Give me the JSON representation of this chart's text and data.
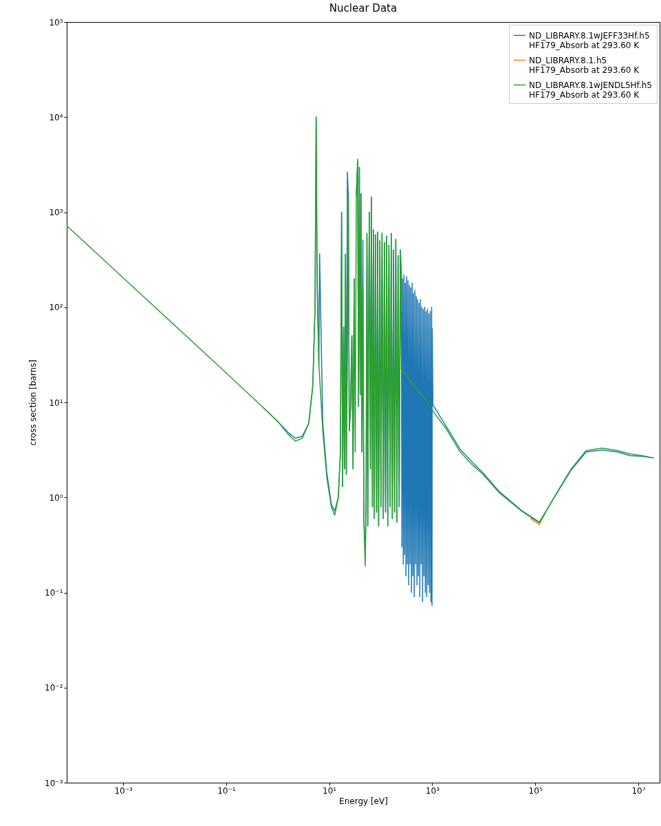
{
  "chart_data": {
    "type": "line",
    "title": "Nuclear Data",
    "xlabel": "Energy [eV]",
    "ylabel": "cross section [barns]",
    "log": "xy",
    "grid": false,
    "legend": "top right",
    "xlim": [
      8e-05,
      26000000.0
    ],
    "ylim": [
      0.001,
      100000
    ],
    "xticks": [
      {
        "value": 0.001,
        "label": "10⁻³"
      },
      {
        "value": 0.1,
        "label": "10⁻¹"
      },
      {
        "value": 10,
        "label": "10¹"
      },
      {
        "value": 1000,
        "label": "10³"
      },
      {
        "value": 100000,
        "label": "10⁵"
      },
      {
        "value": 10000000,
        "label": "10⁷"
      }
    ],
    "yticks": [
      {
        "value": 0.001,
        "label": "10⁻³"
      },
      {
        "value": 0.01,
        "label": "10⁻²"
      },
      {
        "value": 0.1,
        "label": "10⁻¹"
      },
      {
        "value": 1,
        "label": "10⁰"
      },
      {
        "value": 10,
        "label": "10¹"
      },
      {
        "value": 100,
        "label": "10²"
      },
      {
        "value": 1000,
        "label": "10³"
      },
      {
        "value": 10000,
        "label": "10⁴"
      },
      {
        "value": 100000,
        "label": "10⁵"
      }
    ],
    "series": [
      {
        "name": "ND_LIBRARY.8.1wJEFF33Hf.h5\nHF179_Absorb at 293.60 K",
        "color": "#1f77b4",
        "x": [
          0.5,
          1,
          1.6,
          2.2,
          3,
          4,
          4.8,
          5.3,
          5.58,
          5.8,
          6.3,
          6.5,
          7.5,
          9,
          11,
          12.8,
          15,
          16.5,
          17.4,
          18.2,
          19,
          19.8,
          20.6,
          21.5,
          22.5,
          23.5,
          24.5,
          26,
          27.5,
          29,
          30.5,
          32,
          33.5,
          35.7,
          37,
          38.5,
          40,
          41.5,
          43,
          45,
          47,
          50,
          52,
          54,
          56,
          58,
          60,
          63,
          66,
          69,
          72,
          75,
          79,
          83,
          87,
          91,
          96,
          101,
          106,
          112,
          118,
          124,
          130,
          137,
          144,
          152,
          160,
          168,
          177,
          186,
          196,
          206,
          217,
          228,
          240,
          251,
          258,
          266,
          274,
          282,
          291,
          300,
          309,
          318,
          328,
          338,
          349,
          360,
          371,
          383,
          395,
          407,
          420,
          433,
          447,
          461,
          476,
          491,
          506,
          522,
          539,
          556,
          573,
          591,
          610,
          629,
          649,
          670,
          691,
          713,
          735,
          758,
          782,
          807,
          833,
          859,
          886,
          914,
          943,
          973,
          990,
          1000,
          1030,
          1900,
          3500,
          6000,
          9800,
          20000,
          56000,
          120000,
          280000,
          500000,
          970000,
          2000000,
          4000000,
          6900000,
          12000000,
          20000000
        ],
        "values": [
          9,
          6.3,
          4.8,
          4.2,
          4.4,
          6,
          15,
          100,
          10000,
          200,
          25,
          365,
          6,
          1.8,
          0.85,
          0.72,
          1,
          3,
          1000,
          1.3,
          62,
          2,
          360,
          1.75,
          2650,
          1480,
          5,
          9,
          50,
          2,
          200,
          null,
          1500,
          3400,
          9,
          2970,
          12,
          1560,
          3,
          510,
          0.6,
          0.23,
          1,
          600,
          0.5,
          40,
          1000,
          2,
          1440,
          0.8,
          650,
          0.6,
          580,
          0.7,
          620,
          0.5,
          500,
          0.8,
          600,
          0.6,
          480,
          0.7,
          560,
          0.5,
          450,
          0.8,
          600,
          0.6,
          400,
          0.7,
          520,
          0.55,
          350,
          0.8,
          400,
          240,
          0.3,
          200,
          0.2,
          220,
          0.25,
          180,
          0.15,
          210,
          0.2,
          190,
          0.12,
          170,
          0.2,
          160,
          0.1,
          180,
          0.15,
          140,
          0.09,
          150,
          0.2,
          130,
          0.12,
          120,
          0.15,
          110,
          0.09,
          120,
          0.2,
          100,
          0.08,
          95,
          0.15,
          100,
          0.1,
          90,
          0.09,
          95,
          0.12,
          85,
          0.1,
          90,
          0.08,
          100,
          0.073,
          60,
          9.4,
          5.5,
          3.2,
          2.35,
          1.8,
          1.15,
          0.72,
          0.55,
          1.17,
          1.95,
          3,
          3.15,
          3,
          2.75,
          2.7,
          2.6
        ]
      },
      {
        "name": "ND_LIBRARY.8.1.h5\nHF179_Absorb at 293.60 K",
        "color": "#ff7f0e",
        "x": [
          80000,
          120000,
          160000
        ],
        "values": [
          0.6,
          0.52,
          0.7
        ]
      },
      {
        "name": "ND_LIBRARY.8.1wJENDL5Hf.h5\nHF179_Absorb at 293.60 K",
        "color": "#2ca02c",
        "x": [
          8e-05,
          0.001,
          0.01,
          0.1,
          0.5,
          1,
          1.6,
          2.2,
          3,
          4,
          4.8,
          5.3,
          5.58,
          5.8,
          6.3,
          7.5,
          9,
          11,
          12.8,
          15,
          16.5,
          17.4,
          18.2,
          19,
          19.8,
          20.6,
          21.5,
          22.5,
          23.5,
          24.5,
          26,
          27.5,
          29,
          30.5,
          32,
          33.5,
          35.7,
          37,
          38.5,
          40,
          41.5,
          43,
          45,
          47,
          50,
          52,
          54,
          56,
          58,
          60,
          63,
          66,
          69,
          72,
          75,
          79,
          83,
          87,
          91,
          96,
          101,
          106,
          112,
          118,
          124,
          130,
          137,
          144,
          152,
          160,
          168,
          177,
          186,
          196,
          206,
          217,
          228,
          240,
          251,
          400,
          700,
          1030,
          1900,
          3500,
          6000,
          9800,
          20000,
          56000,
          120000,
          280000,
          500000,
          970000,
          2000000,
          4000000,
          6900000,
          12000000,
          20000000
        ],
        "values": [
          720,
          204,
          64.5,
          20.4,
          9,
          6.3,
          4.6,
          3.9,
          4.2,
          6,
          15,
          100,
          10000,
          200,
          25,
          5,
          1.6,
          0.8,
          0.65,
          1,
          3,
          1000,
          1.3,
          62,
          2,
          360,
          1.75,
          30,
          1480,
          5,
          9,
          50,
          2,
          200,
          3,
          1500,
          3600,
          9,
          2970,
          12,
          1560,
          3,
          160,
          0.6,
          0.19,
          1,
          600,
          0.5,
          40,
          1000,
          2,
          1440,
          0.8,
          650,
          0.6,
          580,
          0.7,
          620,
          0.5,
          500,
          0.8,
          600,
          0.6,
          480,
          0.7,
          560,
          0.5,
          450,
          0.8,
          600,
          0.6,
          400,
          0.7,
          520,
          0.55,
          350,
          0.8,
          400,
          22.6,
          16,
          11,
          8.1,
          5.2,
          3,
          2.2,
          1.74,
          1.12,
          0.71,
          0.54,
          1.19,
          2,
          3.1,
          3.3,
          3.1,
          2.87,
          2.75,
          2.6
        ]
      }
    ]
  }
}
